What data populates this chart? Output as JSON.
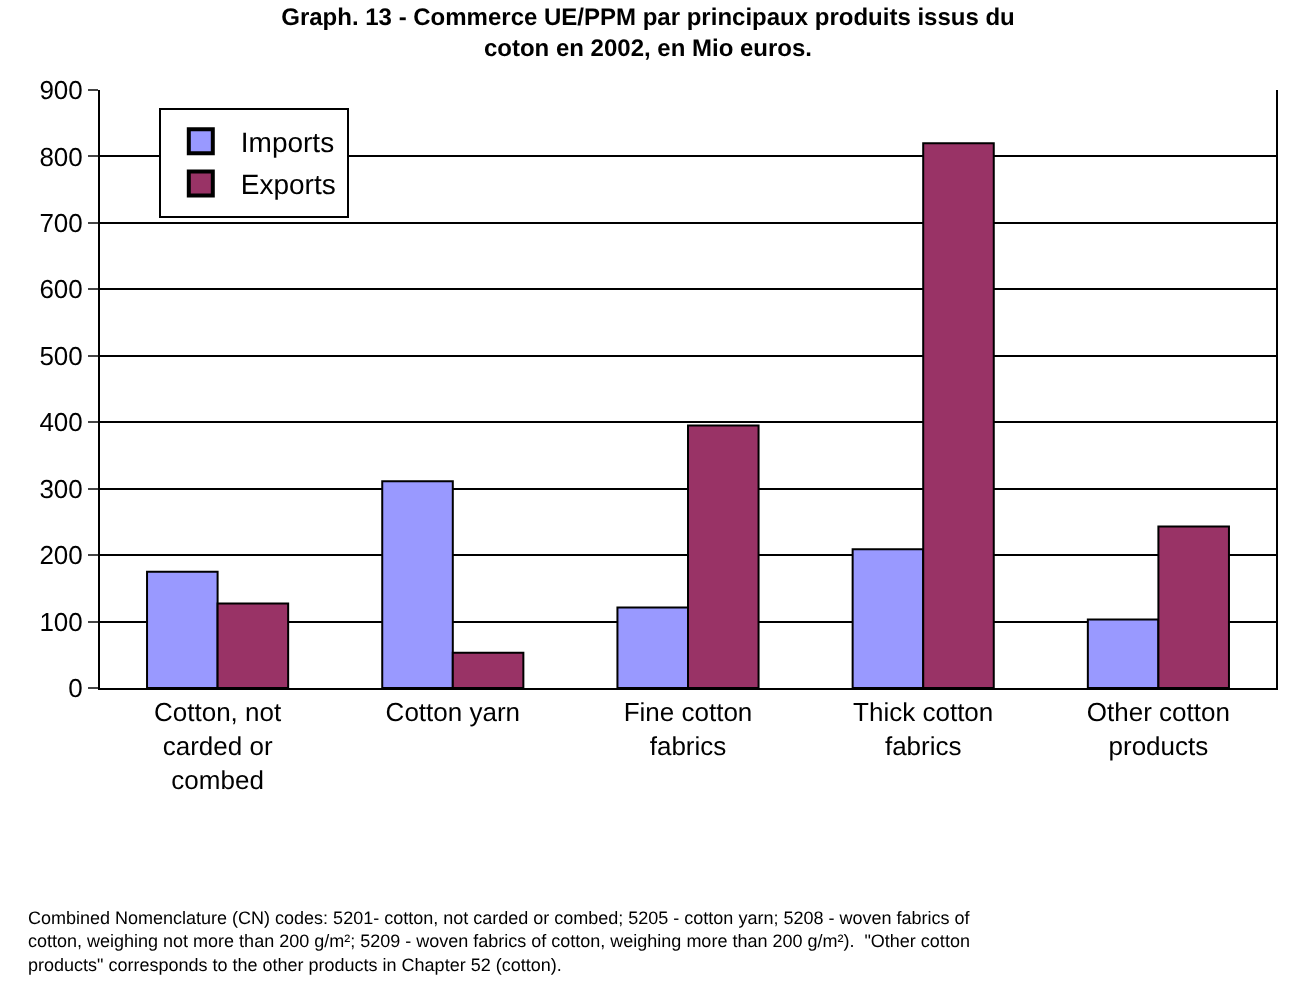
{
  "chart_data": {
    "type": "bar",
    "title": "Graph. 13 - Commerce UE/PPM par principaux produits issus du coton en 2002, en Mio euros.",
    "categories": [
      "Cotton, not carded or combed",
      "Cotton yarn",
      "Fine cotton fabrics",
      "Thick cotton fabrics",
      "Other cotton products"
    ],
    "series": [
      {
        "name": "Imports",
        "color": "#9999ff",
        "values": [
          175,
          311,
          121,
          209,
          103
        ]
      },
      {
        "name": "Exports",
        "color": "#993366",
        "values": [
          127,
          53,
          395,
          820,
          243
        ]
      }
    ],
    "ylim": [
      0,
      900
    ],
    "yticks": [
      0,
      100,
      200,
      300,
      400,
      500,
      600,
      700,
      800,
      900
    ],
    "grid": "y",
    "legend": "top left",
    "annotations": [
      "Combined Nomenclature (CN) codes: 5201- cotton, not carded or combed; 5205 - cotton yarn; 5208 - woven fabrics of cotton, weighing not more than 200 g/m²; 5209 - woven fabrics of cotton, weighing more than 200 g/m²).  \"Other cotton products\" corresponds to the other products in Chapter 52 (cotton)."
    ]
  }
}
